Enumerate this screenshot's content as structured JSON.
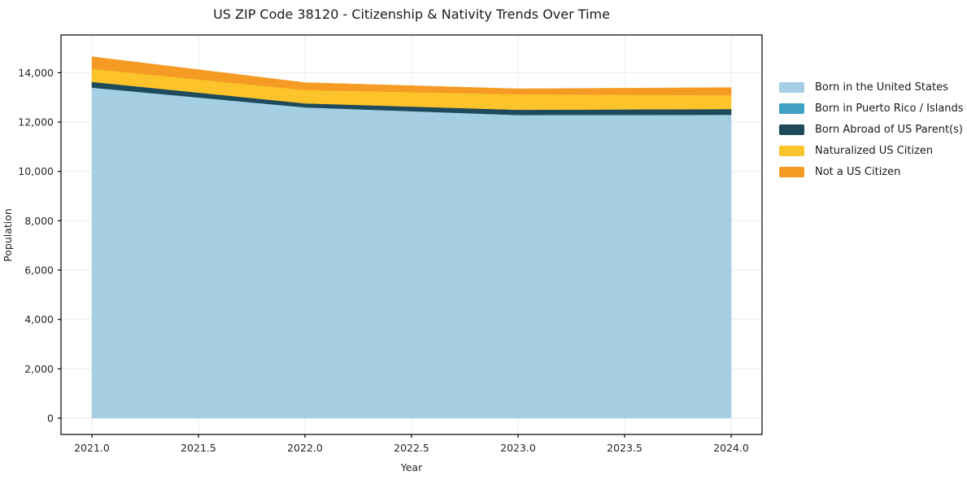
{
  "chart_data": {
    "type": "area",
    "stacked": true,
    "title": "US ZIP Code 38120 - Citizenship & Nativity Trends Over Time",
    "xlabel": "Year",
    "ylabel": "Population",
    "x": [
      2021,
      2022,
      2023,
      2024
    ],
    "series": [
      {
        "name": "Born in the United States",
        "color": "#a6cee3",
        "values": [
          13400,
          12600,
          12290,
          12300
        ]
      },
      {
        "name": "Born in Puerto Rico / Islands",
        "color": "#41a1c4",
        "values": [
          0,
          0,
          0,
          0
        ]
      },
      {
        "name": "Born Abroad of US Parent(s)",
        "color": "#1f4a5c",
        "values": [
          230,
          160,
          210,
          230
        ]
      },
      {
        "name": "Naturalized US Citizen",
        "color": "#fdc32b",
        "values": [
          530,
          540,
          630,
          560
        ]
      },
      {
        "name": "Not a US Citizen",
        "color": "#f59b23",
        "values": [
          490,
          300,
          220,
          310
        ]
      }
    ],
    "stacked_totals": [
      14650,
      13600,
      13350,
      13400
    ],
    "xlim": [
      2020.855,
      2024.145
    ],
    "ylim": [
      -660,
      15530
    ],
    "xticks": [
      2021.0,
      2021.5,
      2022.0,
      2022.5,
      2023.0,
      2023.5,
      2024.0
    ],
    "xtick_labels": [
      "2021.0",
      "2021.5",
      "2022.0",
      "2022.5",
      "2023.0",
      "2023.5",
      "2024.0"
    ],
    "yticks": [
      0,
      2000,
      4000,
      6000,
      8000,
      10000,
      12000,
      14000
    ],
    "ytick_labels": [
      "0",
      "2,000",
      "4,000",
      "6,000",
      "8,000",
      "10,000",
      "12,000",
      "14,000"
    ],
    "grid": true,
    "grid_color": "#ececec",
    "frame_color": "#000000",
    "text_color": "#262626",
    "legend_position": "right-outside"
  }
}
